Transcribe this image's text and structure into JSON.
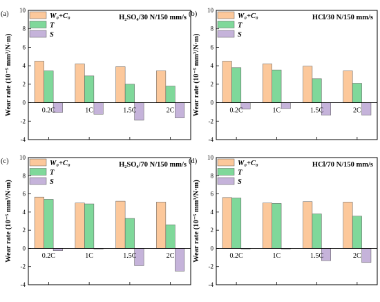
{
  "chart_data": [
    {
      "type": "bar",
      "panel_label": "(a)",
      "title": "H₂SO₄/30 N/150 mm/s",
      "ylabel": "Wear rate (10⁻⁵ mm³/N·m)",
      "ylim": [
        -4,
        10
      ],
      "yticks": [
        -4,
        -2,
        0,
        2,
        4,
        6,
        8,
        10
      ],
      "categories": [
        "0.2C",
        "1C",
        "1.5C",
        "2C"
      ],
      "legend_position": "top-left",
      "series": [
        {
          "name": "W₀+C₀",
          "color": "#fcc89b",
          "values": [
            4.5,
            4.2,
            3.9,
            3.45
          ]
        },
        {
          "name": "T",
          "color": "#7fd89a",
          "values": [
            3.45,
            2.9,
            2.0,
            1.8
          ]
        },
        {
          "name": "S",
          "color": "#c5b3da",
          "values": [
            -1.05,
            -1.25,
            -1.9,
            -1.65
          ]
        }
      ]
    },
    {
      "type": "bar",
      "panel_label": "(b)",
      "title": "HCl/30 N/150 mm/s",
      "ylabel": "Wear rate (10⁻⁵ mm³/N·m)",
      "ylim": [
        -4,
        10
      ],
      "yticks": [
        -4,
        -2,
        0,
        2,
        4,
        6,
        8,
        10
      ],
      "categories": [
        "0.2C",
        "1C",
        "1.5C",
        "2C"
      ],
      "legend_position": "top-left",
      "series": [
        {
          "name": "W₀+C₀",
          "color": "#fcc89b",
          "values": [
            4.5,
            4.2,
            3.95,
            3.45
          ]
        },
        {
          "name": "T",
          "color": "#7fd89a",
          "values": [
            3.8,
            3.55,
            2.6,
            2.1
          ]
        },
        {
          "name": "S",
          "color": "#c5b3da",
          "values": [
            -0.7,
            -0.65,
            -1.35,
            -1.35
          ]
        }
      ]
    },
    {
      "type": "bar",
      "panel_label": "(c)",
      "title": "H₂SO₄/70 N/150 mm/s",
      "ylabel": "Wear rate (10⁻⁵ mm³/N·m)",
      "ylim": [
        -4,
        10
      ],
      "yticks": [
        -4,
        -2,
        0,
        2,
        4,
        6,
        8,
        10
      ],
      "categories": [
        "0.2C",
        "1C",
        "1.5C",
        "2C"
      ],
      "legend_position": "top-left",
      "series": [
        {
          "name": "W₀+C₀",
          "color": "#fcc89b",
          "values": [
            5.65,
            5.0,
            5.2,
            5.1
          ]
        },
        {
          "name": "T",
          "color": "#7fd89a",
          "values": [
            5.4,
            4.9,
            3.3,
            2.6
          ]
        },
        {
          "name": "S",
          "color": "#c5b3da",
          "values": [
            -0.25,
            -0.05,
            -1.9,
            -2.5
          ]
        }
      ]
    },
    {
      "type": "bar",
      "panel_label": "(d)",
      "title": "HCl/70 N/150 mm/s",
      "ylabel": "Wear rate (10⁻⁵ mm³/N·m)",
      "ylim": [
        -4,
        10
      ],
      "yticks": [
        -4,
        -2,
        0,
        2,
        4,
        6,
        8,
        10
      ],
      "categories": [
        "0.2C",
        "1C",
        "1.5C",
        "2C"
      ],
      "legend_position": "top-left",
      "series": [
        {
          "name": "W₀+C₀",
          "color": "#fcc89b",
          "values": [
            5.6,
            5.0,
            5.15,
            5.1
          ]
        },
        {
          "name": "T",
          "color": "#7fd89a",
          "values": [
            5.55,
            4.95,
            3.8,
            3.55
          ]
        },
        {
          "name": "S",
          "color": "#c5b3da",
          "values": [
            -0.05,
            -0.05,
            -1.35,
            -1.55
          ]
        }
      ]
    }
  ]
}
